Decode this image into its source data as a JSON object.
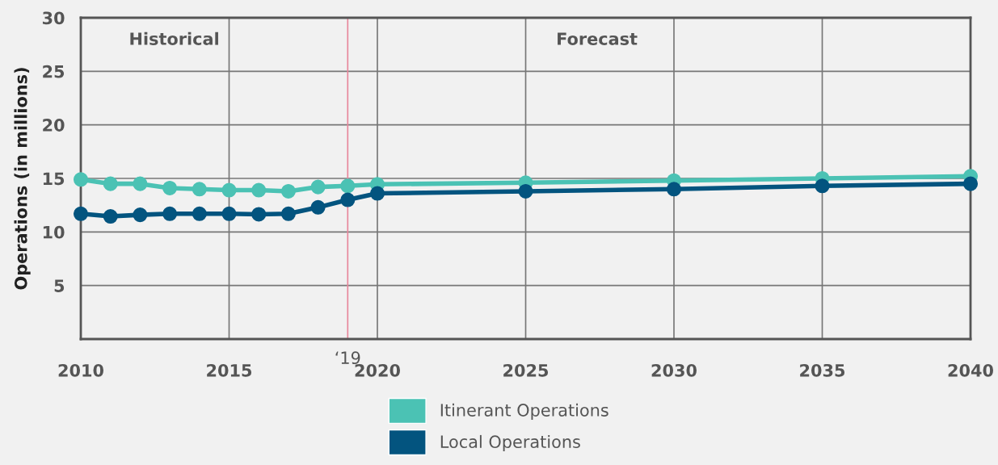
{
  "chart_data": {
    "type": "line",
    "ylabel": "Operations (in millions)",
    "x": [
      2010,
      2011,
      2012,
      2013,
      2014,
      2015,
      2016,
      2017,
      2018,
      2019,
      2020,
      2025,
      2030,
      2035,
      2040
    ],
    "series": [
      {
        "name": "Itinerant Operations",
        "color": "#4bc2b4",
        "values": [
          14.9,
          14.5,
          14.5,
          14.1,
          14.0,
          13.9,
          13.9,
          13.8,
          14.2,
          14.3,
          14.45,
          14.6,
          14.8,
          15.0,
          15.2
        ]
      },
      {
        "name": "Local Operations",
        "color": "#03547f",
        "values": [
          11.7,
          11.45,
          11.6,
          11.7,
          11.7,
          11.7,
          11.65,
          11.7,
          12.3,
          13.0,
          13.6,
          13.8,
          14.0,
          14.3,
          14.5
        ]
      }
    ],
    "xlim": [
      2010,
      2040
    ],
    "xticks": [
      2010,
      2015,
      2020,
      2025,
      2030,
      2035,
      2040
    ],
    "ylim": [
      0,
      30
    ],
    "yticks": [
      5,
      10,
      15,
      20,
      25,
      30
    ],
    "ref_lines": [
      {
        "axis": "x",
        "value": 2019,
        "label": "‘19",
        "color": "#e8879c"
      }
    ],
    "annotations": [
      "Historical",
      "Forecast"
    ],
    "grid": true,
    "legend": "bottom",
    "marker": "circle",
    "line_style": "solid"
  }
}
